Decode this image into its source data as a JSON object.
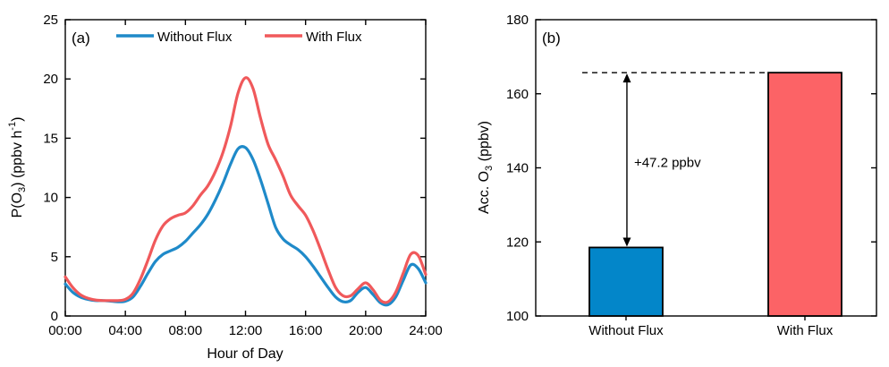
{
  "chart_data": [
    {
      "type": "line",
      "panel_label": "(a)",
      "xlabel": "Hour of Day",
      "ylabel": "P(O3) (ppbv h-1)",
      "ylabel_parts": {
        "pre": "P(O",
        "sub": "3",
        "mid": ") (ppbv h",
        "sup": "-1",
        "post": ")"
      },
      "xlim": [
        0,
        24
      ],
      "ylim": [
        0,
        25
      ],
      "xticks": [
        0,
        4,
        8,
        12,
        16,
        20,
        24
      ],
      "xtick_labels": [
        "00:00",
        "04:00",
        "08:00",
        "12:00",
        "16:00",
        "20:00",
        "24:00"
      ],
      "yticks": [
        0,
        5,
        10,
        15,
        20,
        25
      ],
      "ytick_labels": [
        "0",
        "5",
        "10",
        "15",
        "20",
        "25"
      ],
      "grid": false,
      "legend_position": "top",
      "x": [
        0,
        0.5,
        1,
        1.5,
        2,
        2.5,
        3,
        3.5,
        4,
        4.5,
        5,
        5.5,
        6,
        6.5,
        7,
        7.5,
        8,
        8.5,
        9,
        9.5,
        10,
        10.5,
        11,
        11.5,
        12,
        12.5,
        13,
        13.5,
        14,
        14.5,
        15,
        15.5,
        16,
        16.5,
        17,
        17.5,
        18,
        18.5,
        19,
        19.5,
        20,
        20.5,
        21,
        21.5,
        22,
        22.5,
        23,
        23.5,
        24
      ],
      "series": [
        {
          "name": "Without Flux",
          "color": "#1f8ac9",
          "values": [
            2.7,
            2.0,
            1.6,
            1.4,
            1.3,
            1.3,
            1.25,
            1.2,
            1.25,
            1.6,
            2.5,
            3.6,
            4.6,
            5.2,
            5.5,
            5.8,
            6.3,
            7.0,
            7.7,
            8.6,
            9.8,
            11.2,
            12.8,
            14.1,
            14.2,
            13.2,
            11.5,
            9.5,
            7.5,
            6.5,
            6.0,
            5.6,
            5.0,
            4.2,
            3.3,
            2.4,
            1.6,
            1.2,
            1.3,
            2.0,
            2.4,
            1.8,
            1.1,
            0.95,
            1.6,
            3.0,
            4.3,
            4.0,
            2.8
          ]
        },
        {
          "name": "With Flux",
          "color": "#f0595b",
          "values": [
            3.3,
            2.4,
            1.8,
            1.5,
            1.35,
            1.3,
            1.3,
            1.3,
            1.4,
            1.9,
            3.1,
            4.7,
            6.4,
            7.6,
            8.2,
            8.5,
            8.7,
            9.3,
            10.2,
            11.0,
            12.2,
            13.8,
            16.0,
            18.8,
            20.1,
            19.2,
            16.7,
            14.5,
            13.2,
            11.8,
            10.2,
            9.3,
            8.5,
            7.2,
            5.6,
            3.9,
            2.4,
            1.7,
            1.7,
            2.3,
            2.8,
            2.2,
            1.3,
            1.2,
            2.0,
            3.6,
            5.2,
            5.1,
            3.5
          ]
        }
      ]
    },
    {
      "type": "bar",
      "panel_label": "(b)",
      "xlabel": "",
      "ylabel": "Acc. O3 (ppbv)",
      "ylabel_parts": {
        "pre": "Acc. O",
        "sub": "3",
        "post": " (ppbv)"
      },
      "ylim": [
        100,
        180
      ],
      "yticks": [
        100,
        120,
        140,
        160,
        180
      ],
      "ytick_labels": [
        "100",
        "120",
        "140",
        "160",
        "180"
      ],
      "grid": false,
      "categories": [
        "Without Flux",
        "With Flux"
      ],
      "values": [
        118.5,
        165.7
      ],
      "colors": [
        "#0386c9",
        "#fc6366"
      ],
      "annotation": "+47.2 ppbv"
    }
  ]
}
